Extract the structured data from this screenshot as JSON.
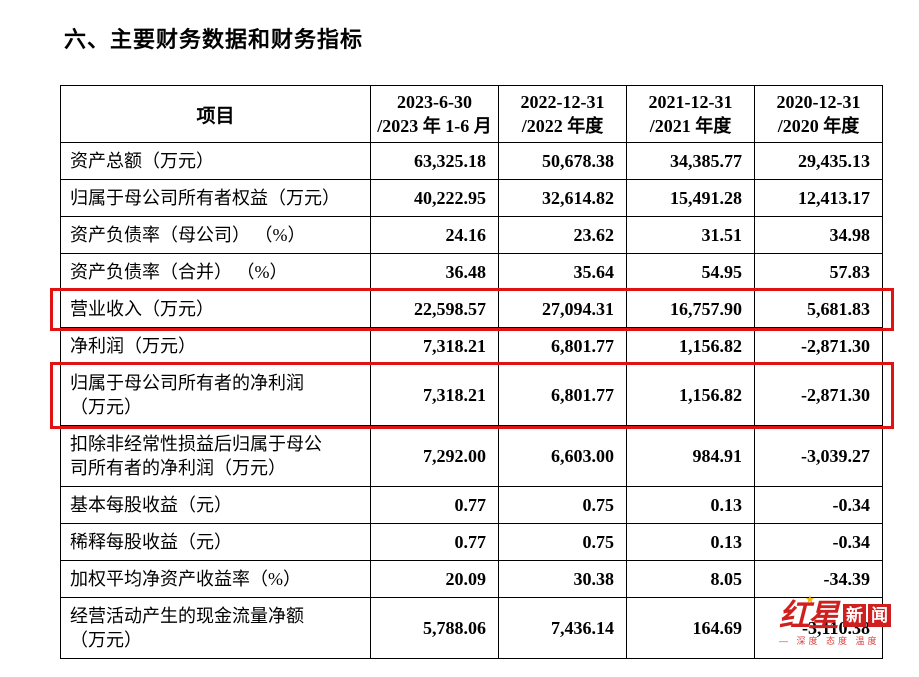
{
  "page": {
    "title": "六、主要财务数据和财务指标"
  },
  "table": {
    "header": {
      "item_label": "项目",
      "columns": [
        {
          "line1": "2023-6-30",
          "line2": "/2023 年 1-6 月"
        },
        {
          "line1": "2022-12-31",
          "line2": "/2022 年度"
        },
        {
          "line1": "2021-12-31",
          "line2": "/2021 年度"
        },
        {
          "line1": "2020-12-31",
          "line2": "/2020 年度"
        }
      ]
    },
    "rows": [
      {
        "label": "资产总额（万元）",
        "values": [
          "63,325.18",
          "50,678.38",
          "34,385.77",
          "29,435.13"
        ],
        "highlighted": false
      },
      {
        "label": "归属于母公司所有者权益（万元）",
        "values": [
          "40,222.95",
          "32,614.82",
          "15,491.28",
          "12,413.17"
        ],
        "highlighted": false
      },
      {
        "label": "资产负债率（母公司） （%）",
        "values": [
          "24.16",
          "23.62",
          "31.51",
          "34.98"
        ],
        "highlighted": false
      },
      {
        "label": "资产负债率（合并） （%）",
        "values": [
          "36.48",
          "35.64",
          "54.95",
          "57.83"
        ],
        "highlighted": false
      },
      {
        "label": "营业收入（万元）",
        "values": [
          "22,598.57",
          "27,094.31",
          "16,757.90",
          "5,681.83"
        ],
        "highlighted": true
      },
      {
        "label": "净利润（万元）",
        "values": [
          "7,318.21",
          "6,801.77",
          "1,156.82",
          "-2,871.30"
        ],
        "highlighted": false
      },
      {
        "label": "归属于母公司所有者的净利润（万元）",
        "values": [
          "7,318.21",
          "6,801.77",
          "1,156.82",
          "-2,871.30"
        ],
        "highlighted": true
      },
      {
        "label": "扣除非经常性损益后归属于母公司所有者的净利润（万元）",
        "values": [
          "7,292.00",
          "6,603.00",
          "984.91",
          "-3,039.27"
        ],
        "highlighted": false
      },
      {
        "label": "基本每股收益（元）",
        "values": [
          "0.77",
          "0.75",
          "0.13",
          "-0.34"
        ],
        "highlighted": false
      },
      {
        "label": "稀释每股收益（元）",
        "values": [
          "0.77",
          "0.75",
          "0.13",
          "-0.34"
        ],
        "highlighted": false
      },
      {
        "label": "加权平均净资产收益率（%）",
        "values": [
          "20.09",
          "30.38",
          "8.05",
          "-34.39"
        ],
        "highlighted": false
      },
      {
        "label": "经营活动产生的现金流量净额（万元）",
        "values": [
          "5,788.06",
          "7,436.14",
          "164.69",
          "-3,110.38"
        ],
        "highlighted": false
      }
    ]
  },
  "watermark": {
    "brand_part1": "红星",
    "brand_part2": "新闻",
    "star_glyph": "★",
    "tagline": "— 深度 态度 温度"
  },
  "colors": {
    "highlight_red": "#e01212",
    "brand_red": "#cf1f1e"
  }
}
